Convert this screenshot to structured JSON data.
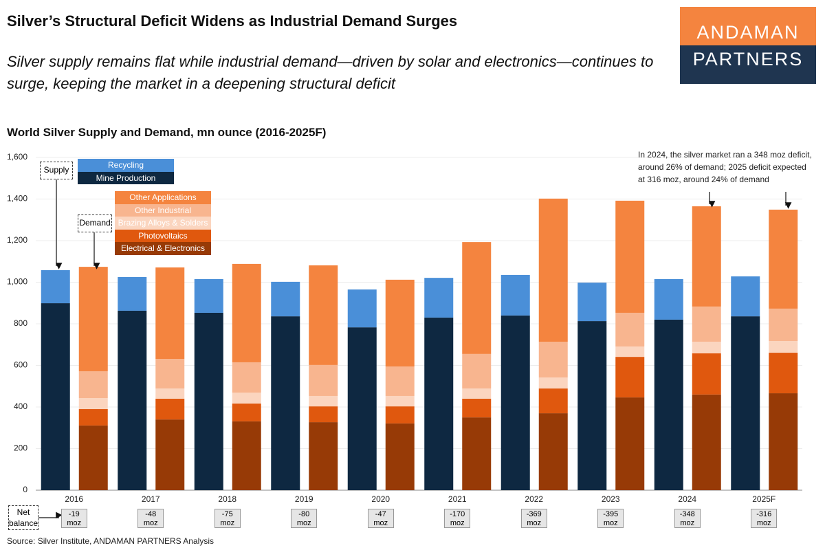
{
  "header": {
    "title": "Silver’s Structural Deficit Widens as Industrial Demand Surges",
    "subtitle": "Silver supply remains flat while industrial demand—driven by solar and electronics—continues to surge, keeping the market in a deepening structural deficit"
  },
  "logo": {
    "top": "ANDAMAN",
    "bottom": "PARTNERS"
  },
  "chart_data": {
    "type": "bar",
    "stacked": true,
    "title": "World Silver Supply and Demand, mn ounce (2016-2025F)",
    "categories": [
      "2016",
      "2017",
      "2018",
      "2019",
      "2020",
      "2021",
      "2022",
      "2023",
      "2024",
      "2025F"
    ],
    "stacks": [
      {
        "name": "Supply",
        "series": [
          {
            "name": "Mine Production",
            "color": "#0e2841",
            "values": [
              899,
              863,
              853,
              836,
              783,
              830,
              840,
              813,
              820,
              836
            ]
          },
          {
            "name": "Recycling",
            "color": "#4a8fd8",
            "values": [
              159,
              162,
              162,
              166,
              182,
              191,
              195,
              185,
              195,
              192
            ]
          }
        ]
      },
      {
        "name": "Demand",
        "series": [
          {
            "name": "Electrical & Electronics",
            "color": "#973a06",
            "values": [
              311,
              340,
              331,
              327,
              321,
              350,
              370,
              446,
              460,
              466
            ]
          },
          {
            "name": "Photovoltaics",
            "color": "#e0580e",
            "values": [
              79,
              100,
              86,
              76,
              82,
              90,
              119,
              195,
              198,
              195
            ]
          },
          {
            "name": "Brazing Alloys & Solders",
            "color": "#fbd5bf",
            "values": [
              53,
              49,
              52,
              50,
              50,
              49,
              53,
              50,
              56,
              56
            ]
          },
          {
            "name": "Other Industrial",
            "color": "#f8b58f",
            "values": [
              129,
              142,
              146,
              149,
              142,
              166,
              172,
              162,
              169,
              156
            ]
          },
          {
            "name": "Other Applications",
            "color": "#f4843f",
            "values": [
              502,
              440,
              473,
              479,
              417,
              538,
              688,
              539,
              482,
              476
            ]
          }
        ]
      }
    ],
    "net_balance": {
      "label": "Net balance",
      "values": [
        -19,
        -48,
        -75,
        -80,
        -47,
        -170,
        -369,
        -395,
        -348,
        -316
      ],
      "value_labels": [
        "-19 moz",
        "-48 moz",
        "-75 moz",
        "-80 moz",
        "-47 moz",
        "-170 moz",
        "-369 moz",
        "-395 moz",
        "-348 moz",
        "-316 moz"
      ]
    },
    "ylim": [
      0,
      1600
    ],
    "yticks": [
      0,
      200,
      400,
      600,
      800,
      {
        "value": 1000,
        "label": "1,000"
      },
      {
        "value": 1200,
        "label": "1,200"
      },
      {
        "value": 1400,
        "label": "1,400"
      },
      {
        "value": 1600,
        "label": "1,600"
      }
    ],
    "grid": true,
    "annotation": "In 2024, the silver market ran a 348 moz deficit, around 26% of demand; 2025 deficit expected at 316 moz, around 24% of demand",
    "source": "Source: Silver Institute, ANDAMAN PARTNERS Analysis"
  }
}
